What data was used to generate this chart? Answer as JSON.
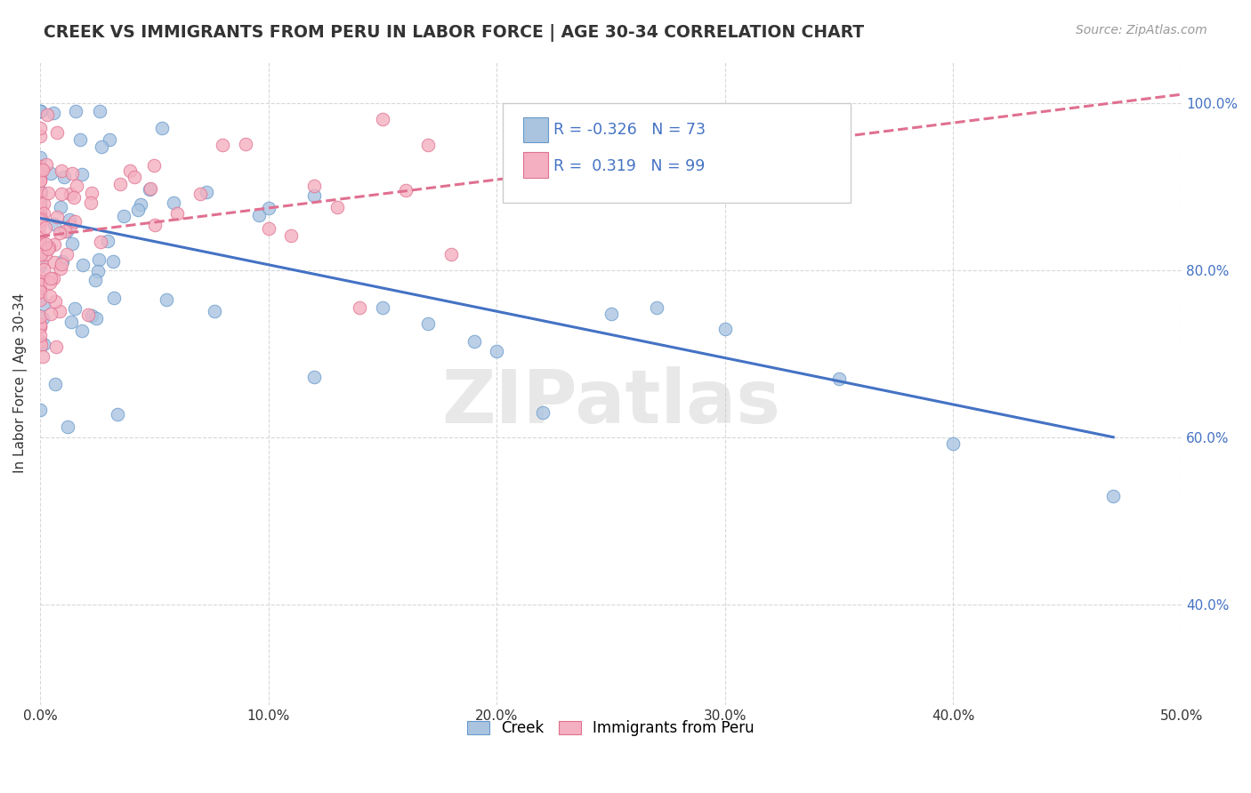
{
  "title": "CREEK VS IMMIGRANTS FROM PERU IN LABOR FORCE | AGE 30-34 CORRELATION CHART",
  "source": "Source: ZipAtlas.com",
  "ylabel": "In Labor Force | Age 30-34",
  "xlim": [
    0.0,
    0.5
  ],
  "ylim": [
    0.28,
    1.05
  ],
  "xtick_labels": [
    "0.0%",
    "10.0%",
    "20.0%",
    "30.0%",
    "40.0%",
    "50.0%"
  ],
  "xtick_values": [
    0.0,
    0.1,
    0.2,
    0.3,
    0.4,
    0.5
  ],
  "ytick_labels": [
    "40.0%",
    "60.0%",
    "80.0%",
    "100.0%"
  ],
  "ytick_values": [
    0.4,
    0.6,
    0.8,
    1.0
  ],
  "creek_color": "#aac4e0",
  "creek_edge_color": "#6699cc",
  "peru_color": "#f4b0c0",
  "peru_edge_color": "#e07090",
  "creek_R": -0.326,
  "creek_N": 73,
  "peru_R": 0.319,
  "peru_N": 99,
  "creek_line_color": "#4472c4",
  "peru_line_color": "#e07090",
  "legend_color": "#4472c4",
  "watermark": "ZIPatlas",
  "grid_color": "#d8d8d8",
  "background_color": "#ffffff",
  "creek_line_x": [
    0.0,
    0.47
  ],
  "creek_line_y": [
    0.862,
    0.6
  ],
  "peru_line_x": [
    0.0,
    0.5
  ],
  "peru_line_y": [
    0.84,
    1.01
  ]
}
